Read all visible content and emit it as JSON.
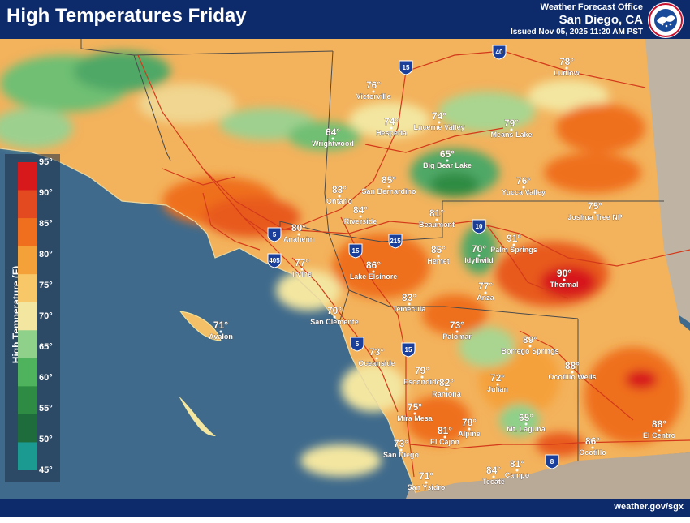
{
  "header": {
    "title": "High Temperatures Friday",
    "office_name": "Weather Forecast Office",
    "office_city": "San Diego, CA",
    "issued": "Issued Nov 05, 2025 11:20 AM PST"
  },
  "footer": {
    "url": "weather.gov/sgx"
  },
  "legend": {
    "title": "High Temperature (F)",
    "ticks": [
      "95°",
      "90°",
      "85°",
      "80°",
      "75°",
      "70°",
      "65°",
      "60°",
      "55°",
      "50°",
      "45°"
    ],
    "colors": [
      "#d7191c",
      "#e34a1f",
      "#ef6f1e",
      "#f5a13a",
      "#f7c768",
      "#f3e6a0",
      "#8fd08a",
      "#4fb35e",
      "#2e8b43",
      "#1e6b3c",
      "#1a9a90"
    ]
  },
  "cities": [
    {
      "name": "Ludlow",
      "temp": "78°"
    },
    {
      "name": "Victorville",
      "temp": "76°"
    },
    {
      "name": "Hesperia",
      "temp": "74°"
    },
    {
      "name": "Lucerne Valley",
      "temp": "74°"
    },
    {
      "name": "Means Lake",
      "temp": "79°"
    },
    {
      "name": "Wrightwood",
      "temp": "64°"
    },
    {
      "name": "Big Bear Lake",
      "temp": "65°"
    },
    {
      "name": "Yucca Valley",
      "temp": "76°"
    },
    {
      "name": "Joshua Tree NP",
      "temp": "75°"
    },
    {
      "name": "San Bernardino",
      "temp": "85°"
    },
    {
      "name": "Ontario",
      "temp": "83°"
    },
    {
      "name": "Riverside",
      "temp": "84°"
    },
    {
      "name": "Anaheim",
      "temp": "80°"
    },
    {
      "name": "Beaumont",
      "temp": "81°"
    },
    {
      "name": "Irvine",
      "temp": "77°"
    },
    {
      "name": "Lake Elsinore",
      "temp": "86°"
    },
    {
      "name": "Hemet",
      "temp": "85°"
    },
    {
      "name": "Idyllwild",
      "temp": "70°"
    },
    {
      "name": "Palm Springs",
      "temp": "91°"
    },
    {
      "name": "Thermal",
      "temp": "90°"
    },
    {
      "name": "Anza",
      "temp": "77°"
    },
    {
      "name": "Temecula",
      "temp": "83°"
    },
    {
      "name": "San Clemente",
      "temp": "70°"
    },
    {
      "name": "Avalon",
      "temp": "71°"
    },
    {
      "name": "Palomar",
      "temp": "73°"
    },
    {
      "name": "Borrego Springs",
      "temp": "89°"
    },
    {
      "name": "Oceanside",
      "temp": "73°"
    },
    {
      "name": "Escondido",
      "temp": "79°"
    },
    {
      "name": "Ramona",
      "temp": "82°"
    },
    {
      "name": "Julian",
      "temp": "72°"
    },
    {
      "name": "Ocotillo Wells",
      "temp": "88°"
    },
    {
      "name": "Mira Mesa",
      "temp": "75°"
    },
    {
      "name": "El Cajon",
      "temp": "81°"
    },
    {
      "name": "Alpine",
      "temp": "78°"
    },
    {
      "name": "Mt. Laguna",
      "temp": "65°"
    },
    {
      "name": "San Diego",
      "temp": "73°"
    },
    {
      "name": "San Ysidro",
      "temp": "71°"
    },
    {
      "name": "Tecate",
      "temp": "84°"
    },
    {
      "name": "Campo",
      "temp": "81°"
    },
    {
      "name": "Ocotillo",
      "temp": "86°"
    },
    {
      "name": "El Centro",
      "temp": "88°"
    }
  ],
  "highways": [
    {
      "label": "40",
      "type": "interstate"
    },
    {
      "label": "15",
      "type": "interstate"
    },
    {
      "label": "10",
      "type": "interstate"
    },
    {
      "label": "5",
      "type": "interstate"
    },
    {
      "label": "405",
      "type": "interstate"
    },
    {
      "label": "215",
      "type": "interstate"
    },
    {
      "label": "15",
      "type": "interstate"
    },
    {
      "label": "5",
      "type": "interstate"
    },
    {
      "label": "15",
      "type": "interstate"
    },
    {
      "label": "8",
      "type": "interstate"
    }
  ]
}
